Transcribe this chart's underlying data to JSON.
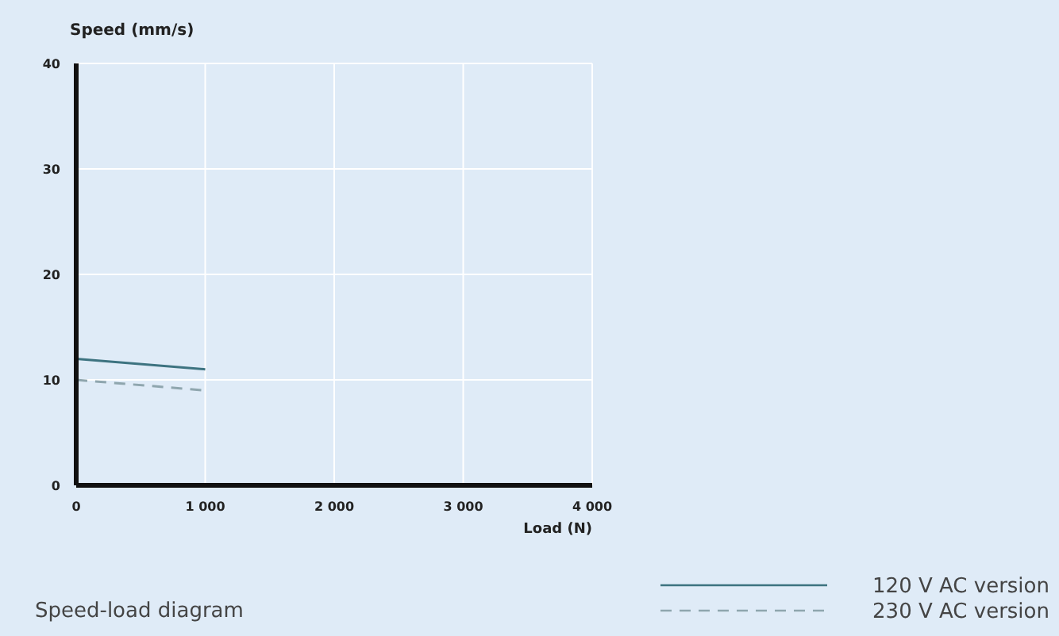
{
  "chart_data": {
    "type": "line",
    "title": "Speed-load diagram",
    "xlabel": "Load (N)",
    "ylabel": "Speed (mm/s)",
    "x": [
      0,
      1000
    ],
    "series": [
      {
        "name": "120 V AC version",
        "color": "#3d7380",
        "values": [
          12,
          11
        ],
        "line_style": "solid"
      },
      {
        "name": "230 V AC version",
        "color": "#8fa6ae",
        "values": [
          10,
          9
        ],
        "line_style": "dashed"
      }
    ],
    "xlim": [
      0,
      4000
    ],
    "xticks": [
      0,
      {
        "value": 1000,
        "label": "1 000"
      },
      {
        "value": 2000,
        "label": "2 000"
      },
      {
        "value": 3000,
        "label": "3 000"
      },
      {
        "value": 4000,
        "label": "4 000"
      }
    ],
    "ylim": [
      0,
      40
    ],
    "yticks": [
      0,
      10,
      20,
      30,
      40
    ],
    "grid": true,
    "legend": "bottom right",
    "marker": "none"
  }
}
